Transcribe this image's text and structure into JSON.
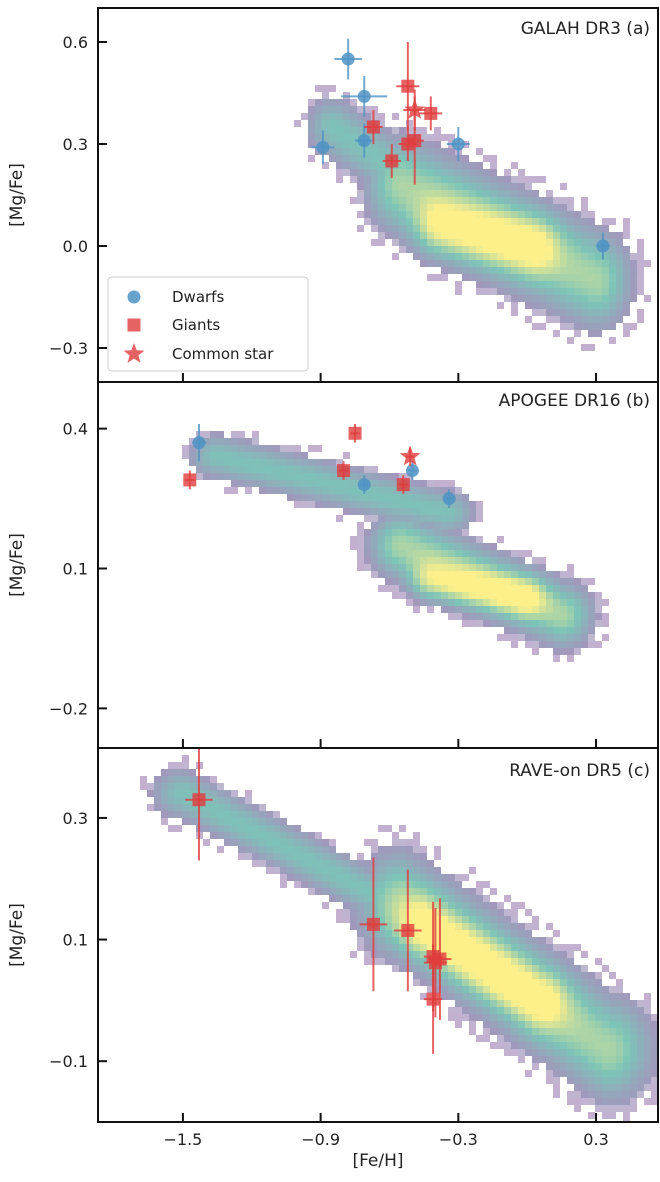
{
  "colors": {
    "dwarf": "#4f93c4",
    "giant": "#e03c3c",
    "density_low": "#a98fbd",
    "density_mid": "#7cc4b8",
    "density_high": "#fdf08a"
  },
  "x_axis": {
    "label": "[Fe/H]",
    "ticks": [
      -1.5,
      -0.9,
      -0.3,
      0.3
    ],
    "tick_labels": [
      "−1.5",
      "−0.9",
      "−0.3",
      "0.3"
    ],
    "lim": [
      -1.87,
      0.57
    ]
  },
  "legend": {
    "placement": "lower-left (panel a)",
    "entries": [
      {
        "label": "Dwarfs",
        "marker": "circle"
      },
      {
        "label": "Giants",
        "marker": "square"
      },
      {
        "label": "Common star",
        "marker": "star"
      }
    ]
  },
  "chart_data": [
    {
      "type": "scatter",
      "title": "GALAH DR3 (a)",
      "ylabel": "[Mg/Fe]",
      "ylim": [
        -0.4,
        0.7
      ],
      "yticks": [
        -0.3,
        0.0,
        0.3,
        0.6
      ],
      "ytick_labels": [
        "−0.3",
        "0.0",
        "0.3",
        "0.6"
      ],
      "background": "density_map",
      "density": {
        "thick": {
          "x": [
            -0.85,
            -0.25
          ],
          "y": [
            0.35,
            0.08
          ],
          "w": 0.16,
          "h": 0.13
        },
        "thin": {
          "x": [
            -0.55,
            0.3
          ],
          "y": [
            0.18,
            -0.1
          ],
          "w": 0.22,
          "h": 0.2
        },
        "core": {
          "x": [
            -0.38,
            0.02
          ],
          "y": [
            0.05,
            0.0
          ],
          "w": 0.16,
          "h": 0.12
        }
      },
      "dwarfs": [
        {
          "x": -0.78,
          "y": 0.55,
          "xerr": 0.06,
          "yerr": 0.06
        },
        {
          "x": -0.71,
          "y": 0.44,
          "xerr": 0.1,
          "yerr": 0.06
        },
        {
          "x": -0.89,
          "y": 0.29,
          "xerr": 0.05,
          "yerr": 0.05
        },
        {
          "x": -0.71,
          "y": 0.31,
          "xerr": 0.04,
          "yerr": 0.05
        },
        {
          "x": -0.3,
          "y": 0.3,
          "xerr": 0.05,
          "yerr": 0.05
        },
        {
          "x": 0.33,
          "y": 0.0,
          "xerr": 0.03,
          "yerr": 0.04
        }
      ],
      "giants": [
        {
          "x": -0.52,
          "y": 0.47,
          "xerr": 0.05,
          "yerr": 0.13
        },
        {
          "x": -0.67,
          "y": 0.35,
          "xerr": 0.04,
          "yerr": 0.05
        },
        {
          "x": -0.42,
          "y": 0.39,
          "xerr": 0.05,
          "yerr": 0.05
        },
        {
          "x": -0.59,
          "y": 0.25,
          "xerr": 0.04,
          "yerr": 0.05
        },
        {
          "x": -0.52,
          "y": 0.3,
          "xerr": 0.04,
          "yerr": 0.05
        },
        {
          "x": -0.49,
          "y": 0.31,
          "xerr": 0.04,
          "yerr": 0.13
        }
      ],
      "common_star": {
        "x": -0.49,
        "y": 0.4,
        "xerr": 0.05,
        "yerr": 0.06
      }
    },
    {
      "type": "scatter",
      "title": "APOGEE DR16 (b)",
      "ylabel": "[Mg/Fe]",
      "ylim": [
        -0.285,
        0.5
      ],
      "yticks": [
        -0.2,
        0.1,
        0.4
      ],
      "ytick_labels": [
        "−0.2",
        "0.1",
        "0.4"
      ],
      "background": "density_map",
      "density": {
        "thick": {
          "x": [
            -1.35,
            -0.35
          ],
          "y": [
            0.34,
            0.22
          ],
          "w": 0.18,
          "h": 0.07
        },
        "thin": {
          "x": [
            -0.55,
            0.15
          ],
          "y": [
            0.15,
            -0.0
          ],
          "w": 0.2,
          "h": 0.1
        },
        "core": {
          "x": [
            -0.42,
            -0.02
          ],
          "y": [
            0.07,
            0.04
          ],
          "w": 0.14,
          "h": 0.06
        }
      },
      "dwarfs": [
        {
          "x": -1.43,
          "y": 0.37,
          "xerr": 0.03,
          "yerr": 0.04
        },
        {
          "x": -0.71,
          "y": 0.28,
          "xerr": 0.02,
          "yerr": 0.02
        },
        {
          "x": -0.5,
          "y": 0.31,
          "xerr": 0.02,
          "yerr": 0.02
        },
        {
          "x": -0.34,
          "y": 0.25,
          "xerr": 0.02,
          "yerr": 0.02
        }
      ],
      "giants": [
        {
          "x": -1.47,
          "y": 0.29,
          "xerr": 0.02,
          "yerr": 0.02
        },
        {
          "x": -0.8,
          "y": 0.31,
          "xerr": 0.02,
          "yerr": 0.02
        },
        {
          "x": -0.75,
          "y": 0.39,
          "xerr": 0.02,
          "yerr": 0.02
        },
        {
          "x": -0.54,
          "y": 0.28,
          "xerr": 0.02,
          "yerr": 0.02
        }
      ],
      "common_star": {
        "x": -0.51,
        "y": 0.34,
        "xerr": 0.02,
        "yerr": 0.02
      }
    },
    {
      "type": "scatter",
      "title": "RAVE-on DR5 (c)",
      "ylabel": "[Mg/Fe]",
      "ylim": [
        -0.2,
        0.415
      ],
      "yticks": [
        -0.1,
        0.1,
        0.3
      ],
      "ytick_labels": [
        "−0.1",
        "0.1",
        "0.3"
      ],
      "background": "density_map",
      "density": {
        "thick": {
          "x": [
            -1.5,
            -0.6
          ],
          "y": [
            0.34,
            0.16
          ],
          "w": 0.2,
          "h": 0.06
        },
        "thin": {
          "x": [
            -0.55,
            0.35
          ],
          "y": [
            0.16,
            -0.08
          ],
          "w": 0.28,
          "h": 0.12
        },
        "core": {
          "x": [
            -0.45,
            0.05
          ],
          "y": [
            0.12,
            0.0
          ],
          "w": 0.18,
          "h": 0.07
        }
      },
      "dwarfs": [],
      "giants": [
        {
          "x": -1.43,
          "y": 0.33,
          "xerr": 0.06,
          "yerr": 0.1
        },
        {
          "x": -0.67,
          "y": 0.125,
          "xerr": 0.06,
          "yerr": 0.11
        },
        {
          "x": -0.52,
          "y": 0.115,
          "xerr": 0.06,
          "yerr": 0.1
        },
        {
          "x": -0.41,
          "y": 0.072,
          "xerr": 0.04,
          "yerr": 0.09
        },
        {
          "x": -0.4,
          "y": 0.062,
          "xerr": 0.05,
          "yerr": 0.09
        },
        {
          "x": -0.38,
          "y": 0.068,
          "xerr": 0.05,
          "yerr": 0.1
        },
        {
          "x": -0.41,
          "y": 0.002,
          "xerr": 0.04,
          "yerr": 0.09
        }
      ],
      "common_star": null
    }
  ]
}
